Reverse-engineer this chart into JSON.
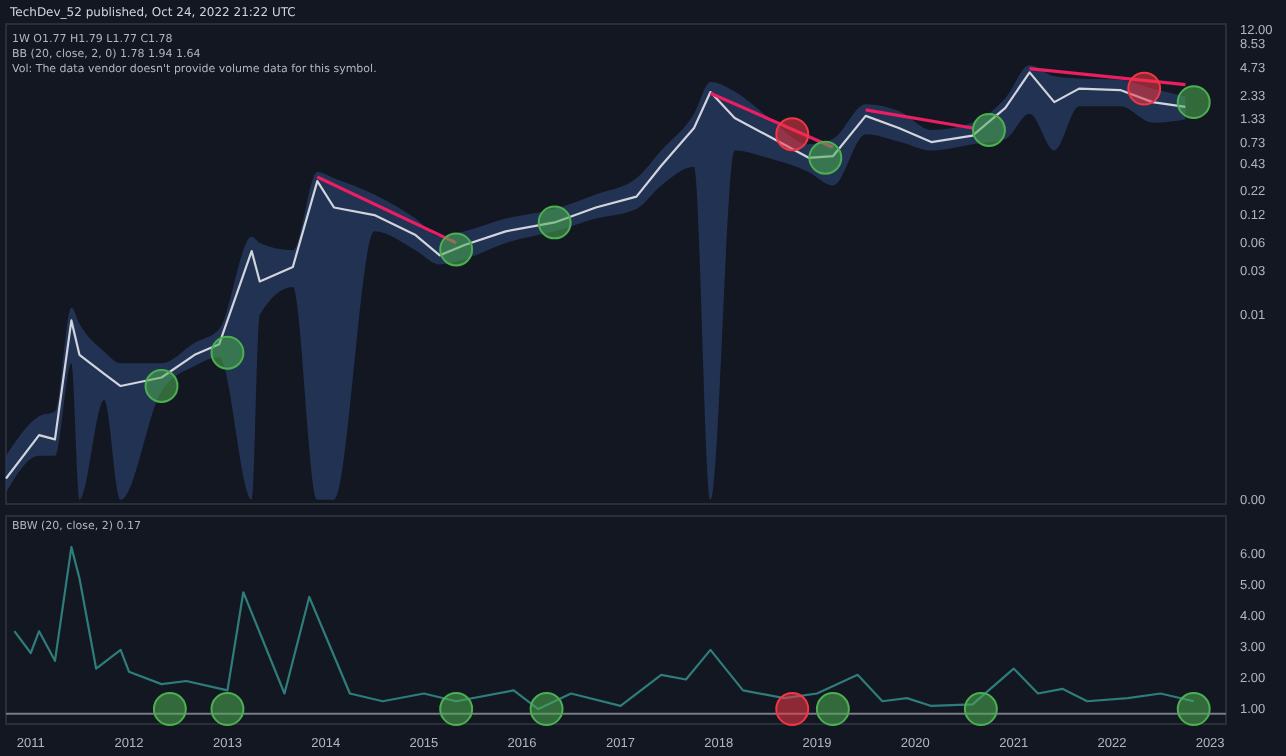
{
  "chart_data": [
    {
      "type": "line",
      "title": "TechDev_52 published, Oct 24, 2022 21:22 UTC",
      "log": "y",
      "tick_labels": "y",
      "annotations": [
        "1W O1.77 H1.79 L1.77 C1.78",
        "BB (20, close, 2, 0) 1.78 1.94 1.64",
        "Vol: The data vendor doesn't provide volume data for this symbol."
      ],
      "xlim": [
        "2010-10",
        "2023-03"
      ],
      "ylim": [
        9e-05,
        14
      ],
      "yticks": [
        {
          "value": 0.0001,
          "label": "0.00"
        },
        {
          "value": 0.01,
          "label": "0.01"
        },
        {
          "value": 0.03,
          "label": "0.03"
        },
        {
          "value": 0.06,
          "label": "0.06"
        },
        {
          "value": 0.12,
          "label": "0.12"
        },
        {
          "value": 0.22,
          "label": "0.22"
        },
        {
          "value": 0.43,
          "label": "0.43"
        },
        {
          "value": 0.73,
          "label": "0.73"
        },
        {
          "value": 1.33,
          "label": "1.33"
        },
        {
          "value": 2.33,
          "label": "2.33"
        },
        {
          "value": 4.73,
          "label": "4.73"
        },
        {
          "value": 8.53,
          "label": "8.53"
        },
        {
          "value": 12,
          "label": "12.00"
        }
      ],
      "series": [
        {
          "type": "line",
          "color": "#d1d4dc",
          "x": [
            "2010-10",
            "2011-02",
            "2011-04",
            "2011-06",
            "2011-07",
            "2011-10",
            "2011-12",
            "2012-05",
            "2012-09",
            "2012-12",
            "2013-04",
            "2013-05",
            "2013-09",
            "2013-12",
            "2014-02",
            "2014-07",
            "2014-12",
            "2015-03",
            "2015-06",
            "2015-11",
            "2016-05",
            "2016-10",
            "2017-03",
            "2017-06",
            "2017-10",
            "2017-12",
            "2018-03",
            "2018-07",
            "2018-12",
            "2019-03",
            "2019-07",
            "2019-11",
            "2020-03",
            "2020-08",
            "2020-12",
            "2021-03",
            "2021-06",
            "2021-09",
            "2022-02",
            "2022-06",
            "2022-10"
          ],
          "values": [
            0.00017,
            0.0005,
            0.00045,
            0.0087,
            0.0037,
            0.0023,
            0.0017,
            0.0021,
            0.0037,
            0.0048,
            0.049,
            0.023,
            0.033,
            0.28,
            0.145,
            0.12,
            0.073,
            0.044,
            0.057,
            0.08,
            0.1,
            0.145,
            0.19,
            0.41,
            1.05,
            2.57,
            1.35,
            0.87,
            0.5,
            0.52,
            1.42,
            1.05,
            0.74,
            0.87,
            1.73,
            4.2,
            2.0,
            2.8,
            2.7,
            2.0,
            1.78
          ],
          "lower": [
            0.00012,
            0.0003,
            0.0003,
            0.003,
            0.0001,
            0.0012,
            0.0001,
            0.0015,
            0.0028,
            0.0035,
            0.0001,
            0.01,
            0.02,
            0.0001,
            0.0001,
            0.08,
            0.05,
            0.035,
            0.04,
            0.06,
            0.08,
            0.11,
            0.14,
            0.25,
            0.4,
            0.0001,
            0.6,
            0.5,
            0.35,
            0.25,
            0.9,
            0.75,
            0.6,
            0.7,
            0.8,
            1.5,
            0.6,
            1.8,
            1.8,
            1.2,
            1.3
          ],
          "upper": [
            0.0003,
            0.0008,
            0.0009,
            0.012,
            0.008,
            0.004,
            0.003,
            0.003,
            0.005,
            0.007,
            0.07,
            0.06,
            0.05,
            0.35,
            0.3,
            0.2,
            0.11,
            0.07,
            0.08,
            0.11,
            0.14,
            0.2,
            0.3,
            0.6,
            1.5,
            3.3,
            2.6,
            1.4,
            0.7,
            0.8,
            1.9,
            1.6,
            1.0,
            1.2,
            2.2,
            5.0,
            3.8,
            3.6,
            3.5,
            2.8,
            2.3
          ]
        },
        {
          "type": "line",
          "color": "#e91e63",
          "x": [
            "2013-12",
            "2015-05"
          ],
          "values": [
            0.31,
            0.06
          ]
        },
        {
          "type": "line",
          "color": "#e91e63",
          "x": [
            "2017-12",
            "2019-03"
          ],
          "values": [
            2.5,
            0.65
          ]
        },
        {
          "type": "line",
          "color": "#e91e63",
          "x": [
            "2019-07",
            "2020-08"
          ],
          "values": [
            1.65,
            1.05
          ]
        },
        {
          "type": "line",
          "color": "#e91e63",
          "x": [
            "2021-03",
            "2022-10"
          ],
          "values": [
            4.6,
            3.1
          ]
        },
        {
          "type": "scatter",
          "marker": "circle",
          "color": "#4caf50",
          "x": [
            "2012-05",
            "2013-01",
            "2015-05",
            "2016-05",
            "2019-02",
            "2020-10",
            "2022-11"
          ],
          "values": [
            0.0017,
            0.0039,
            0.051,
            0.1,
            0.5,
            1.0,
            2.0
          ]
        },
        {
          "type": "scatter",
          "marker": "circle",
          "color": "#f23645",
          "x": [
            "2018-10",
            "2022-05"
          ],
          "values": [
            0.9,
            2.8
          ]
        }
      ]
    },
    {
      "type": "line",
      "title": "BBW (20, close, 2) 0.17",
      "xlim": [
        "2010-10",
        "2023-03"
      ],
      "ylim": [
        0.52,
        7.2
      ],
      "xticks": [
        "2011",
        "2012",
        "2013",
        "2014",
        "2015",
        "2016",
        "2017",
        "2018",
        "2019",
        "2020",
        "2021",
        "2022",
        "2023"
      ],
      "yticks": [
        {
          "value": 1,
          "label": "1.00"
        },
        {
          "value": 2,
          "label": "2.00"
        },
        {
          "value": 3,
          "label": "3.00"
        },
        {
          "value": 4,
          "label": "4.00"
        },
        {
          "value": 5,
          "label": "5.00"
        },
        {
          "value": 6,
          "label": "6.00"
        }
      ],
      "ref_lines": [
        {
          "axis": "y",
          "value": 0.85,
          "color": "#787b86"
        }
      ],
      "series": [
        {
          "type": "line",
          "color": "#2e7d7a",
          "x": [
            "2010-11",
            "2011-01",
            "2011-02",
            "2011-04",
            "2011-06",
            "2011-07",
            "2011-09",
            "2011-12",
            "2012-01",
            "2012-05",
            "2012-08",
            "2013-01",
            "2013-03",
            "2013-08",
            "2013-11",
            "2014-04",
            "2014-08",
            "2015-01",
            "2015-05",
            "2015-12",
            "2016-03",
            "2016-07",
            "2017-01",
            "2017-06",
            "2017-09",
            "2017-12",
            "2018-04",
            "2018-09",
            "2019-01",
            "2019-06",
            "2019-09",
            "2019-12",
            "2020-03",
            "2020-08",
            "2021-01",
            "2021-04",
            "2021-07",
            "2021-10",
            "2022-03",
            "2022-07",
            "2022-11"
          ],
          "values": [
            3.5,
            2.8,
            3.5,
            2.55,
            6.2,
            5.2,
            2.3,
            2.9,
            2.2,
            1.8,
            1.9,
            1.6,
            4.75,
            1.5,
            4.6,
            1.5,
            1.25,
            1.5,
            1.25,
            1.6,
            1.0,
            1.5,
            1.1,
            2.1,
            1.95,
            2.9,
            1.6,
            1.35,
            1.5,
            2.1,
            1.25,
            1.35,
            1.1,
            1.15,
            2.3,
            1.5,
            1.65,
            1.25,
            1.35,
            1.5,
            1.25
          ]
        },
        {
          "type": "scatter",
          "marker": "circle",
          "color": "#4caf50",
          "x": [
            "2012-06",
            "2013-01",
            "2015-05",
            "2016-04",
            "2019-03",
            "2020-09",
            "2022-11"
          ],
          "values": [
            1,
            1,
            1,
            1,
            1,
            1,
            1
          ]
        },
        {
          "type": "scatter",
          "marker": "circle",
          "color": "#f23645",
          "x": [
            "2018-10"
          ],
          "values": [
            1
          ]
        }
      ]
    }
  ]
}
